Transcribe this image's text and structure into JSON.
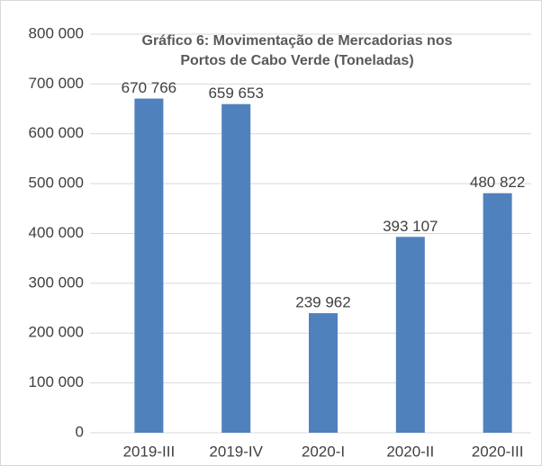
{
  "chart_data": {
    "type": "bar",
    "title": [
      "Gráfico 6: Movimentação de Mercadorias nos",
      "Portos de Cabo Verde (Toneladas)"
    ],
    "categories": [
      "2019-III",
      "2019-IV",
      "2020-I",
      "2020-II",
      "2020-III"
    ],
    "values": [
      670766,
      659653,
      239962,
      393107,
      480822
    ],
    "value_labels": [
      "670 766",
      "659 653",
      "239 962",
      "393 107",
      "480 822"
    ],
    "color": "#4f81bd",
    "ylim": [
      0,
      800000
    ],
    "yticks": [
      {
        "value": 0,
        "label": "0"
      },
      {
        "value": 100000,
        "label": "100 000"
      },
      {
        "value": 200000,
        "label": "200 000"
      },
      {
        "value": 300000,
        "label": "300 000"
      },
      {
        "value": 400000,
        "label": "400 000"
      },
      {
        "value": 500000,
        "label": "500 000"
      },
      {
        "value": 600000,
        "label": "600 000"
      },
      {
        "value": 700000,
        "label": "700 000"
      },
      {
        "value": 800000,
        "label": "800 000"
      }
    ],
    "grid": true
  }
}
